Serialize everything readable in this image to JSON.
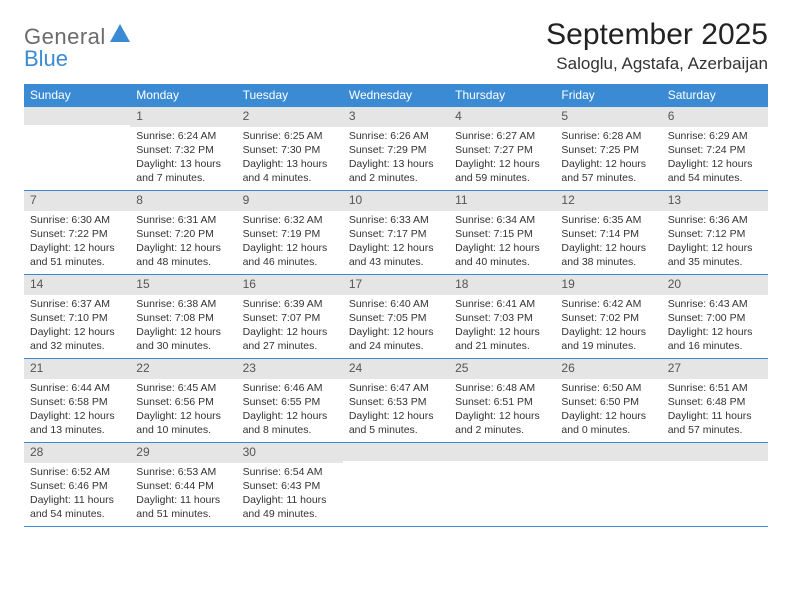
{
  "brand": {
    "word1": "General",
    "word2": "Blue",
    "sail_fill": "#3b8bd4"
  },
  "header": {
    "title": "September 2025",
    "location": "Saloglu, Agstafa, Azerbaijan"
  },
  "colors": {
    "header_bg": "#3b8bd4",
    "header_text": "#ffffff",
    "daynum_bg": "#e5e5e5",
    "rule": "#3b8bd4",
    "body_text": "#333333"
  },
  "layout": {
    "columns": 7,
    "leading_blanks": 1
  },
  "dow": [
    "Sunday",
    "Monday",
    "Tuesday",
    "Wednesday",
    "Thursday",
    "Friday",
    "Saturday"
  ],
  "days": [
    {
      "n": 1,
      "sunrise": "6:24 AM",
      "sunset": "7:32 PM",
      "daylight": "13 hours and 7 minutes."
    },
    {
      "n": 2,
      "sunrise": "6:25 AM",
      "sunset": "7:30 PM",
      "daylight": "13 hours and 4 minutes."
    },
    {
      "n": 3,
      "sunrise": "6:26 AM",
      "sunset": "7:29 PM",
      "daylight": "13 hours and 2 minutes."
    },
    {
      "n": 4,
      "sunrise": "6:27 AM",
      "sunset": "7:27 PM",
      "daylight": "12 hours and 59 minutes."
    },
    {
      "n": 5,
      "sunrise": "6:28 AM",
      "sunset": "7:25 PM",
      "daylight": "12 hours and 57 minutes."
    },
    {
      "n": 6,
      "sunrise": "6:29 AM",
      "sunset": "7:24 PM",
      "daylight": "12 hours and 54 minutes."
    },
    {
      "n": 7,
      "sunrise": "6:30 AM",
      "sunset": "7:22 PM",
      "daylight": "12 hours and 51 minutes."
    },
    {
      "n": 8,
      "sunrise": "6:31 AM",
      "sunset": "7:20 PM",
      "daylight": "12 hours and 48 minutes."
    },
    {
      "n": 9,
      "sunrise": "6:32 AM",
      "sunset": "7:19 PM",
      "daylight": "12 hours and 46 minutes."
    },
    {
      "n": 10,
      "sunrise": "6:33 AM",
      "sunset": "7:17 PM",
      "daylight": "12 hours and 43 minutes."
    },
    {
      "n": 11,
      "sunrise": "6:34 AM",
      "sunset": "7:15 PM",
      "daylight": "12 hours and 40 minutes."
    },
    {
      "n": 12,
      "sunrise": "6:35 AM",
      "sunset": "7:14 PM",
      "daylight": "12 hours and 38 minutes."
    },
    {
      "n": 13,
      "sunrise": "6:36 AM",
      "sunset": "7:12 PM",
      "daylight": "12 hours and 35 minutes."
    },
    {
      "n": 14,
      "sunrise": "6:37 AM",
      "sunset": "7:10 PM",
      "daylight": "12 hours and 32 minutes."
    },
    {
      "n": 15,
      "sunrise": "6:38 AM",
      "sunset": "7:08 PM",
      "daylight": "12 hours and 30 minutes."
    },
    {
      "n": 16,
      "sunrise": "6:39 AM",
      "sunset": "7:07 PM",
      "daylight": "12 hours and 27 minutes."
    },
    {
      "n": 17,
      "sunrise": "6:40 AM",
      "sunset": "7:05 PM",
      "daylight": "12 hours and 24 minutes."
    },
    {
      "n": 18,
      "sunrise": "6:41 AM",
      "sunset": "7:03 PM",
      "daylight": "12 hours and 21 minutes."
    },
    {
      "n": 19,
      "sunrise": "6:42 AM",
      "sunset": "7:02 PM",
      "daylight": "12 hours and 19 minutes."
    },
    {
      "n": 20,
      "sunrise": "6:43 AM",
      "sunset": "7:00 PM",
      "daylight": "12 hours and 16 minutes."
    },
    {
      "n": 21,
      "sunrise": "6:44 AM",
      "sunset": "6:58 PM",
      "daylight": "12 hours and 13 minutes."
    },
    {
      "n": 22,
      "sunrise": "6:45 AM",
      "sunset": "6:56 PM",
      "daylight": "12 hours and 10 minutes."
    },
    {
      "n": 23,
      "sunrise": "6:46 AM",
      "sunset": "6:55 PM",
      "daylight": "12 hours and 8 minutes."
    },
    {
      "n": 24,
      "sunrise": "6:47 AM",
      "sunset": "6:53 PM",
      "daylight": "12 hours and 5 minutes."
    },
    {
      "n": 25,
      "sunrise": "6:48 AM",
      "sunset": "6:51 PM",
      "daylight": "12 hours and 2 minutes."
    },
    {
      "n": 26,
      "sunrise": "6:50 AM",
      "sunset": "6:50 PM",
      "daylight": "12 hours and 0 minutes."
    },
    {
      "n": 27,
      "sunrise": "6:51 AM",
      "sunset": "6:48 PM",
      "daylight": "11 hours and 57 minutes."
    },
    {
      "n": 28,
      "sunrise": "6:52 AM",
      "sunset": "6:46 PM",
      "daylight": "11 hours and 54 minutes."
    },
    {
      "n": 29,
      "sunrise": "6:53 AM",
      "sunset": "6:44 PM",
      "daylight": "11 hours and 51 minutes."
    },
    {
      "n": 30,
      "sunrise": "6:54 AM",
      "sunset": "6:43 PM",
      "daylight": "11 hours and 49 minutes."
    }
  ],
  "labels": {
    "sunrise_prefix": "Sunrise: ",
    "sunset_prefix": "Sunset: ",
    "daylight_prefix": "Daylight: "
  }
}
